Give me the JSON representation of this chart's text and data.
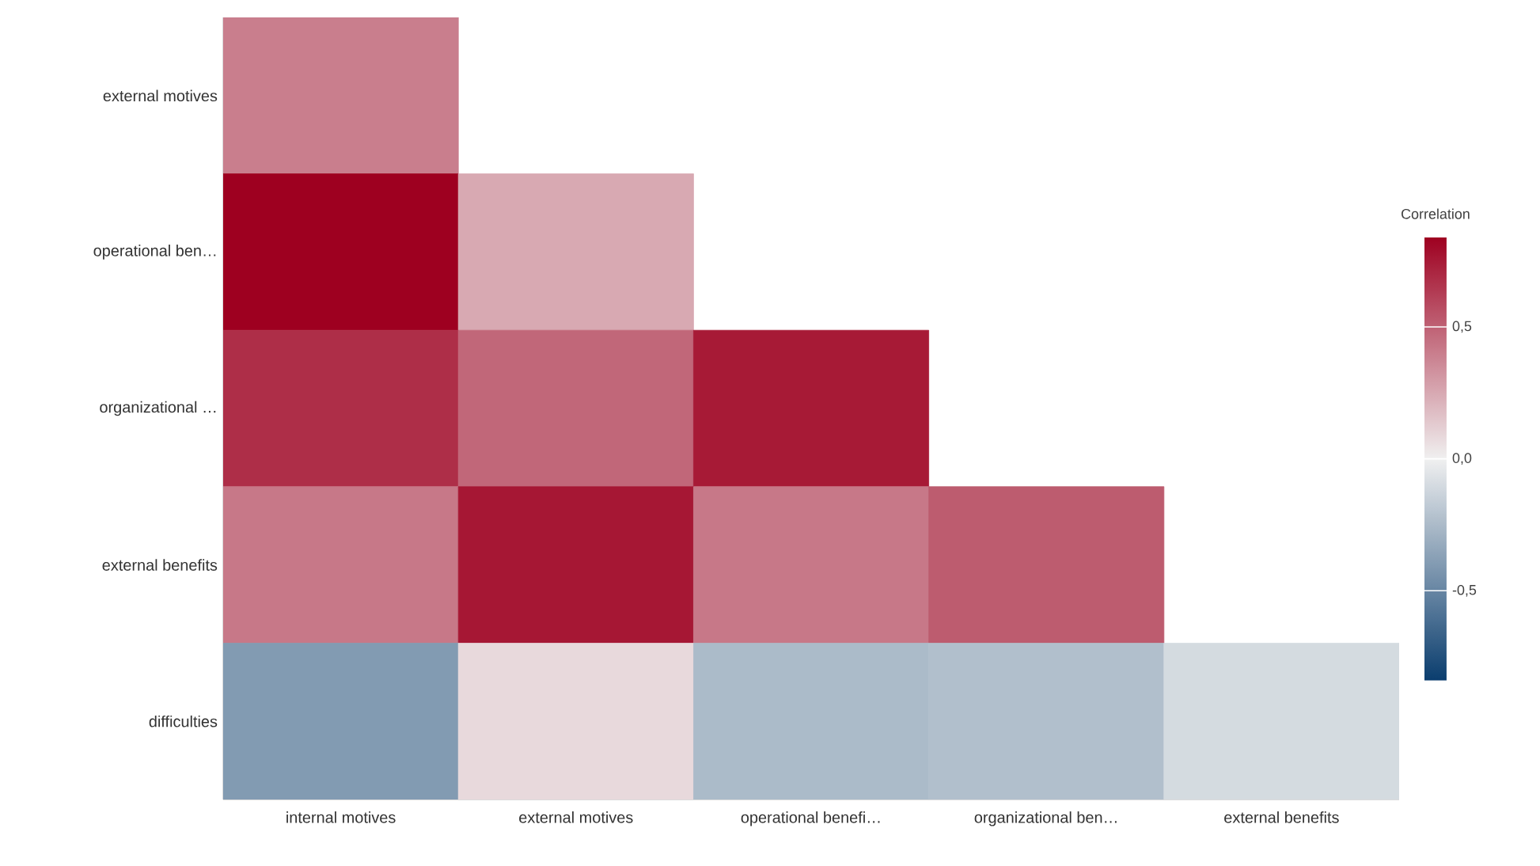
{
  "chart_data": {
    "type": "heatmap",
    "categories": [
      "internal motives",
      "external motives",
      "operational benefi…",
      "organizational ben…",
      "external benefits"
    ],
    "y_categories": [
      "external motives",
      "operational ben…",
      "organizational …",
      "external benefits",
      "difficulties"
    ],
    "cells": [
      [
        0.4,
        null,
        null,
        null,
        null
      ],
      [
        0.84,
        0.25,
        null,
        null,
        null
      ],
      [
        0.68,
        0.48,
        0.75,
        null,
        null
      ],
      [
        0.42,
        0.76,
        0.42,
        0.52,
        null
      ],
      [
        -0.4,
        0.08,
        -0.25,
        -0.23,
        -0.1
      ]
    ],
    "clabel": "Correlation",
    "clim": [
      -0.84,
      0.84
    ],
    "cticks": [
      {
        "value": 0.5,
        "label": "0,5"
      },
      {
        "value": 0,
        "label": "0,0"
      },
      {
        "value": -0.5,
        "label": "-0,5"
      }
    ]
  }
}
